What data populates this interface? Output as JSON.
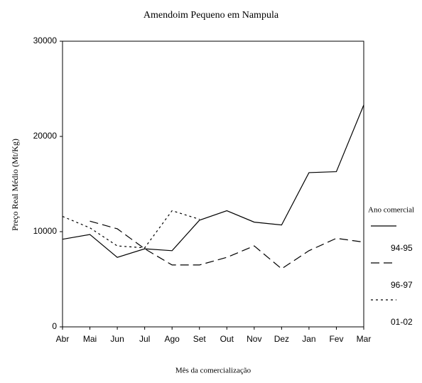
{
  "chart_data": {
    "type": "line",
    "title": "Amendoim Pequeno em Nampula",
    "x_label": "Mês da comercialização",
    "y_label": "Preço Real Médio (Mt/Kg)",
    "legend_title": "Ano comercial",
    "categories": [
      "Abr",
      "Mai",
      "Jun",
      "Jul",
      "Ago",
      "Set",
      "Out",
      "Nov",
      "Dez",
      "Jan",
      "Fev",
      "Mar"
    ],
    "series": [
      {
        "name": "94-95",
        "color": "#000000",
        "style": "solid",
        "values": [
          9200,
          9700,
          7300,
          8200,
          8000,
          11200,
          12200,
          11000,
          10700,
          16200,
          16300,
          23300
        ]
      },
      {
        "name": "96-97",
        "color": "#000000",
        "style": "dashed",
        "values": [
          null,
          11100,
          10300,
          8200,
          6500,
          6500,
          7300,
          8500,
          6100,
          8000,
          9300,
          8900
        ]
      },
      {
        "name": "01-02",
        "color": "#000000",
        "style": "dotted",
        "values": [
          11600,
          10400,
          8500,
          8300,
          12200,
          11300,
          null,
          null,
          null,
          null,
          null,
          null
        ]
      }
    ],
    "ylim": [
      0,
      30000
    ],
    "yticks": [
      0,
      10000,
      20000,
      30000
    ],
    "legend": "right"
  }
}
